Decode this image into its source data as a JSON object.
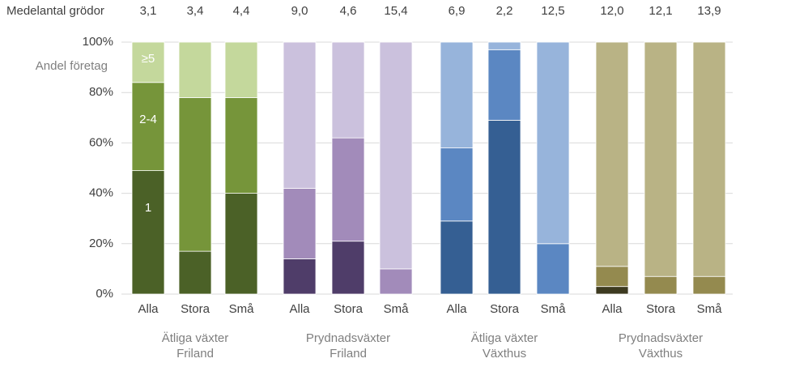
{
  "chart_data": {
    "type": "bar",
    "stacked": true,
    "row_label": "Medelantal grödor",
    "ylabel": "Andel företag",
    "ylim": [
      0,
      100
    ],
    "yticks": [
      {
        "value": 0,
        "label": "0%"
      },
      {
        "value": 20,
        "label": "20%"
      },
      {
        "value": 40,
        "label": "40%"
      },
      {
        "value": 60,
        "label": "60%"
      },
      {
        "value": 80,
        "label": "80%"
      },
      {
        "value": 100,
        "label": "100%"
      }
    ],
    "grid": true,
    "segments": [
      "1",
      "2-4",
      "≥5"
    ],
    "groups": [
      {
        "label": [
          "Ätliga växter",
          "Friland"
        ],
        "categories": [
          "Alla",
          "Stora",
          "Små"
        ],
        "means": [
          "3,1",
          "3,4",
          "4,4"
        ],
        "series": [
          {
            "color": "#4b6127",
            "values": [
              49,
              17,
              40
            ]
          },
          {
            "color": "#76953a",
            "values": [
              35,
              61,
              38
            ]
          },
          {
            "color": "#c4d89c",
            "values": [
              16,
              22,
              22
            ]
          }
        ]
      },
      {
        "label": [
          "Prydnadsväxter",
          "Friland"
        ],
        "categories": [
          "Alla",
          "Stora",
          "Små"
        ],
        "means": [
          "9,0",
          "4,6",
          "15,4"
        ],
        "series": [
          {
            "color": "#4f3d69",
            "values": [
              14,
              21,
              0
            ]
          },
          {
            "color": "#a28bba",
            "values": [
              28,
              41,
              10
            ]
          },
          {
            "color": "#cbc1dd",
            "values": [
              58,
              38,
              90
            ]
          }
        ]
      },
      {
        "label": [
          "Ätliga växter",
          "Växthus"
        ],
        "categories": [
          "Alla",
          "Stora",
          "Små"
        ],
        "means": [
          "6,9",
          "2,2",
          "12,5"
        ],
        "series": [
          {
            "color": "#355f93",
            "values": [
              29,
              69,
              0
            ]
          },
          {
            "color": "#5b87c2",
            "values": [
              29,
              28,
              20
            ]
          },
          {
            "color": "#97b4db",
            "values": [
              42,
              3,
              80
            ]
          }
        ]
      },
      {
        "label": [
          "Prydnadsväxter",
          "Växthus"
        ],
        "categories": [
          "Alla",
          "Stora",
          "Små"
        ],
        "means": [
          "12,0",
          "12,1",
          "13,9"
        ],
        "series": [
          {
            "color": "#3d3a20",
            "values": [
              3,
              0,
              0
            ]
          },
          {
            "color": "#948a4f",
            "values": [
              8,
              7,
              7
            ]
          },
          {
            "color": "#b9b385",
            "values": [
              89,
              93,
              93
            ]
          }
        ]
      }
    ]
  }
}
